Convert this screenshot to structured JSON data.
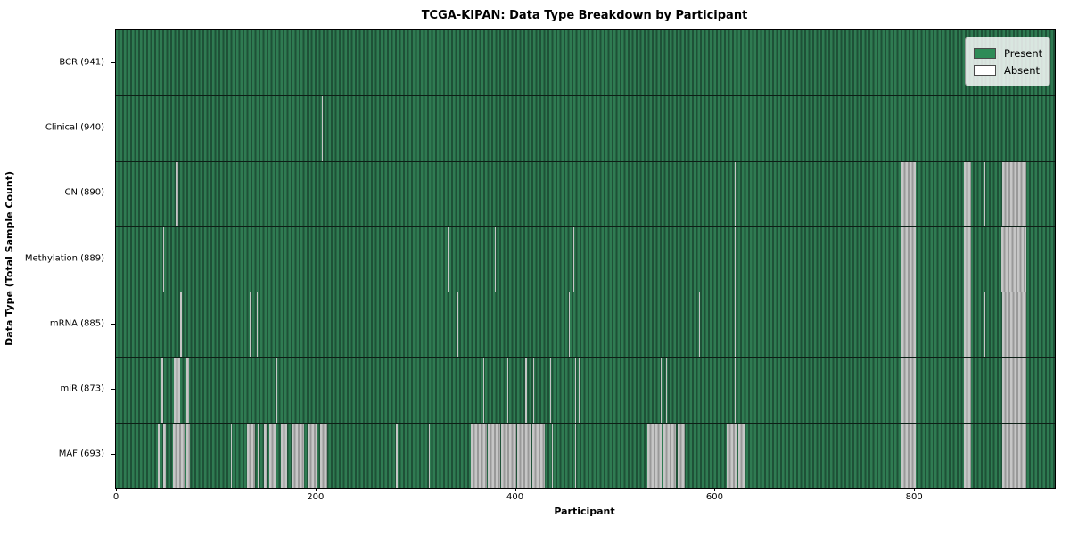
{
  "legend": {
    "present_label": "Present",
    "absent_label": "Absent"
  },
  "colors": {
    "present": "#2e8b57",
    "present_stripe_light": "#2f7b52",
    "present_stripe_dark": "#1e5137",
    "absent": "#ffffff",
    "absent_stripe_light": "#c6c6c6",
    "absent_stripe_dark": "#999999"
  },
  "chart_data": {
    "type": "heatmap",
    "title": "TCGA-KIPAN: Data Type Breakdown by Participant",
    "xlabel": "Participant",
    "ylabel": "Data Type (Total Sample Count)",
    "legend_position": "upper right",
    "grid": false,
    "n_participants": 941,
    "x_ticks": [
      0,
      200,
      400,
      600,
      800
    ],
    "xlim": [
      0,
      941
    ],
    "rows": [
      {
        "label": "BCR",
        "count": 941,
        "absent_ranges": []
      },
      {
        "label": "Clinical",
        "count": 940,
        "absent_ranges": [
          [
            206,
            207
          ]
        ]
      },
      {
        "label": "CN",
        "count": 890,
        "absent_ranges": [
          [
            60,
            63
          ],
          [
            620,
            621
          ],
          [
            787,
            802
          ],
          [
            850,
            857
          ],
          [
            870,
            871
          ],
          [
            888,
            912
          ]
        ]
      },
      {
        "label": "Methylation",
        "count": 889,
        "absent_ranges": [
          [
            47,
            48
          ],
          [
            332,
            333
          ],
          [
            380,
            381
          ],
          [
            458,
            459
          ],
          [
            620,
            621
          ],
          [
            787,
            802
          ],
          [
            850,
            857
          ],
          [
            887,
            912
          ]
        ]
      },
      {
        "label": "mRNA",
        "count": 885,
        "absent_ranges": [
          [
            64,
            66
          ],
          [
            134,
            135
          ],
          [
            141,
            142
          ],
          [
            342,
            343
          ],
          [
            454,
            455
          ],
          [
            581,
            582
          ],
          [
            584,
            585
          ],
          [
            620,
            621
          ],
          [
            787,
            802
          ],
          [
            850,
            857
          ],
          [
            870,
            871
          ],
          [
            888,
            912
          ]
        ]
      },
      {
        "label": "miR",
        "count": 873,
        "absent_ranges": [
          [
            46,
            47
          ],
          [
            58,
            64
          ],
          [
            71,
            73
          ],
          [
            161,
            162
          ],
          [
            368,
            369
          ],
          [
            392,
            393
          ],
          [
            410,
            412
          ],
          [
            418,
            419
          ],
          [
            435,
            436
          ],
          [
            460,
            461
          ],
          [
            464,
            465
          ],
          [
            546,
            547
          ],
          [
            551,
            552
          ],
          [
            581,
            582
          ],
          [
            620,
            621
          ],
          [
            787,
            802
          ],
          [
            850,
            857
          ],
          [
            888,
            912
          ]
        ]
      },
      {
        "label": "MAF",
        "count": 693,
        "absent_ranges": [
          [
            42,
            45
          ],
          [
            47,
            50
          ],
          [
            57,
            69
          ],
          [
            71,
            74
          ],
          [
            115,
            116
          ],
          [
            131,
            139
          ],
          [
            142,
            143
          ],
          [
            148,
            151
          ],
          [
            154,
            161
          ],
          [
            165,
            172
          ],
          [
            176,
            189
          ],
          [
            192,
            202
          ],
          [
            205,
            212
          ],
          [
            281,
            282
          ],
          [
            314,
            315
          ],
          [
            356,
            372
          ],
          [
            373,
            385
          ],
          [
            386,
            401
          ],
          [
            402,
            416
          ],
          [
            417,
            430
          ],
          [
            437,
            438
          ],
          [
            460,
            461
          ],
          [
            533,
            547
          ],
          [
            549,
            561
          ],
          [
            563,
            570
          ],
          [
            612,
            622
          ],
          [
            624,
            631
          ],
          [
            787,
            802
          ],
          [
            850,
            857
          ],
          [
            888,
            912
          ]
        ]
      }
    ]
  }
}
